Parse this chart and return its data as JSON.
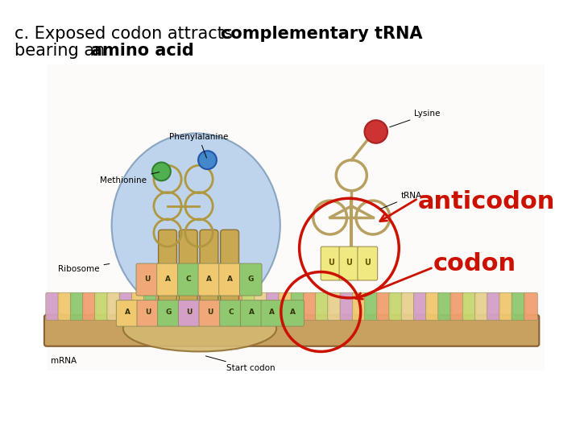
{
  "title_normal1": "c. Exposed codon attracts ",
  "title_bold1": "complementary tRNA",
  "title_normal2": "bearing an ",
  "title_bold2": "amino acid",
  "title_fontsize": 15,
  "label_anticodon": "anticodon",
  "label_codon": "codon",
  "label_color": "#cc1100",
  "label_fontsize": 22,
  "background_color": "#ffffff",
  "fig_width": 7.2,
  "fig_height": 5.4,
  "dpi": 100,
  "diagram_bg": "#f5f0e8",
  "mrna_bar_color": "#c8a060",
  "mrna_bar_edge": "#8a6030",
  "ribosome_fill": "#a8c8e8",
  "ribosome_edge": "#7090b0",
  "ribosome_bot_fill": "#d4b870",
  "tan_tube_fill": "#c8a850",
  "tan_tube_edge": "#907030",
  "loop_color": "#b09840",
  "green_sphere": "#50b050",
  "blue_sphere": "#4488cc",
  "red_sphere": "#cc3333",
  "trna_color": "#b8a060",
  "tab_colors": [
    "#d4a0c8",
    "#f0c870",
    "#90c870",
    "#f0a070",
    "#c8d870",
    "#e8d090"
  ],
  "uuu_color": "#f0e880",
  "circle_color": "#cc1100",
  "arrow_color": "#cc1100"
}
